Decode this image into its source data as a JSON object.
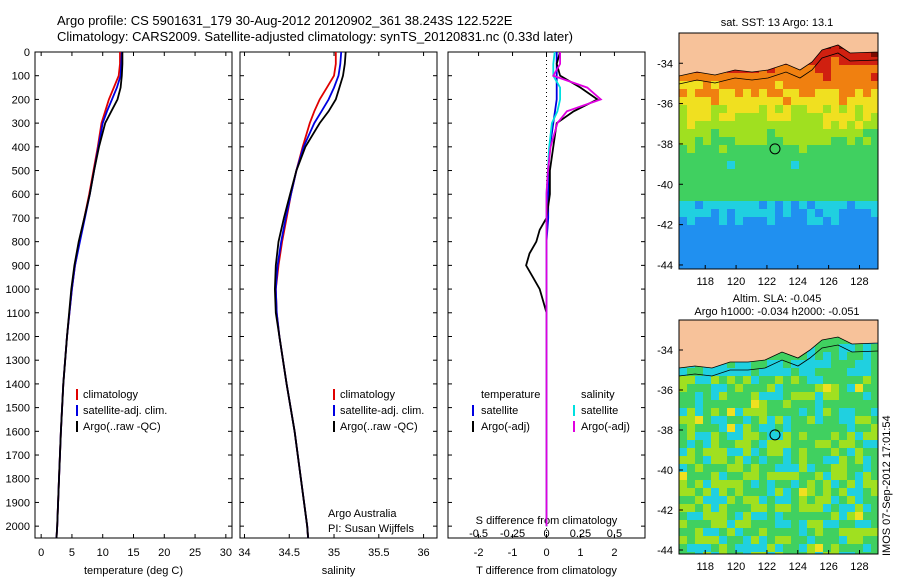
{
  "title_line1": "Argo profile: CS 5901631_179 30-Aug-2012 20120902_361 38.243S 122.522E",
  "title_line2": "Climatology: CARS2009. Satellite-adjusted climatology: synTS_20120831.nc (0.33d later)",
  "depth_ticks": [
    0,
    100,
    200,
    300,
    400,
    500,
    600,
    700,
    800,
    900,
    1000,
    1100,
    1200,
    1300,
    1400,
    1500,
    1600,
    1700,
    1800,
    1900,
    2000
  ],
  "colors": {
    "climatology": "#e00000",
    "satellite": "#0000e0",
    "argo": "#000000",
    "sal_sat": "#00e0e0",
    "sal_adj": "#e000e0",
    "land": "#f7c29a"
  },
  "footer": {
    "imos_stamp": "IMOS 07-Sep-2012 17:01:54",
    "argo_australia": "Argo Australia",
    "pi": "PI: Susan Wijffels"
  },
  "chart_data": [
    {
      "type": "line",
      "xlabel": "temperature (deg C)",
      "xticks": [
        0,
        5,
        10,
        15,
        20,
        25,
        30
      ],
      "xlim": [
        -1,
        31
      ],
      "ylim": [
        2050,
        0
      ],
      "legend": {
        "position": "lower-center",
        "labels": [
          "climatology",
          "satellite-adj. clim.",
          "Argo(..raw -QC)"
        ]
      },
      "series": [
        {
          "name": "climatology",
          "depth": [
            0,
            50,
            100,
            150,
            200,
            250,
            300,
            400,
            500,
            600,
            700,
            800,
            900,
            1000,
            1200,
            1400,
            1600,
            1800,
            2000,
            2050
          ],
          "values": [
            12.8,
            12.8,
            12.6,
            11.8,
            11.0,
            10.4,
            9.8,
            9.2,
            8.5,
            7.8,
            7.0,
            6.2,
            5.5,
            5.0,
            4.2,
            3.6,
            3.2,
            2.9,
            2.6,
            2.5
          ]
        },
        {
          "name": "satellite-adj. clim.",
          "depth": [
            0,
            50,
            100,
            150,
            200,
            250,
            300,
            400,
            500,
            600,
            700,
            800,
            900,
            1000,
            1200,
            1400,
            1600,
            1800,
            2000,
            2050
          ],
          "values": [
            13.1,
            13.0,
            12.9,
            12.3,
            11.5,
            10.7,
            10.0,
            9.3,
            8.6,
            7.9,
            7.1,
            6.3,
            5.5,
            5.0,
            4.2,
            3.6,
            3.2,
            2.9,
            2.6,
            2.5
          ]
        },
        {
          "name": "Argo(..raw -QC)",
          "depth": [
            0,
            50,
            100,
            150,
            200,
            250,
            300,
            400,
            500,
            600,
            700,
            800,
            900,
            1000,
            1200,
            1400,
            1600,
            1800,
            2000,
            2050
          ],
          "values": [
            13.2,
            13.2,
            13.1,
            12.9,
            12.4,
            11.4,
            10.4,
            9.4,
            8.6,
            7.9,
            7.0,
            6.1,
            5.4,
            4.9,
            4.2,
            3.6,
            3.2,
            2.9,
            2.6,
            2.5
          ]
        }
      ]
    },
    {
      "type": "line",
      "xlabel": "salinity",
      "xticks": [
        34,
        34.5,
        35,
        35.5,
        36
      ],
      "xlim": [
        33.95,
        36.15
      ],
      "ylim": [
        2050,
        0
      ],
      "legend": {
        "position": "lower-center",
        "labels": [
          "climatology",
          "satellite-adj. clim.",
          "Argo(..raw -QC)"
        ]
      },
      "series": [
        {
          "name": "climatology",
          "depth": [
            0,
            50,
            100,
            150,
            200,
            250,
            300,
            400,
            500,
            600,
            700,
            800,
            900,
            1000,
            1100,
            1200,
            1400,
            1600,
            1800,
            2000,
            2050
          ],
          "values": [
            35.02,
            35.02,
            35.0,
            34.92,
            34.84,
            34.78,
            34.73,
            34.65,
            34.58,
            34.52,
            34.47,
            34.42,
            34.38,
            34.35,
            34.36,
            34.39,
            34.47,
            34.56,
            34.63,
            34.7,
            34.71
          ]
        },
        {
          "name": "satellite-adj. clim.",
          "depth": [
            0,
            50,
            100,
            150,
            200,
            250,
            300,
            400,
            500,
            600,
            700,
            800,
            900,
            1000,
            1100,
            1200,
            1400,
            1600,
            1800,
            2000,
            2050
          ],
          "values": [
            35.08,
            35.07,
            35.05,
            35.0,
            34.94,
            34.86,
            34.78,
            34.66,
            34.58,
            34.52,
            34.46,
            34.41,
            34.37,
            34.35,
            34.36,
            34.39,
            34.47,
            34.56,
            34.63,
            34.7,
            34.71
          ]
        },
        {
          "name": "Argo(..raw -QC)",
          "depth": [
            0,
            50,
            100,
            150,
            200,
            250,
            300,
            400,
            500,
            600,
            700,
            800,
            900,
            1000,
            1100,
            1200,
            1400,
            1600,
            1800,
            2000,
            2050
          ],
          "values": [
            35.13,
            35.12,
            35.1,
            35.06,
            35.02,
            34.94,
            34.84,
            34.68,
            34.58,
            34.51,
            34.44,
            34.38,
            34.35,
            34.34,
            34.35,
            34.39,
            34.47,
            34.56,
            34.63,
            34.7,
            34.71
          ]
        }
      ]
    },
    {
      "type": "line",
      "xlabel": "T difference from climatology",
      "xlabel_top": "S difference from climatology",
      "xticks": [
        -2,
        -1,
        0,
        1,
        2
      ],
      "xticks_top": [
        -0.5,
        -0.25,
        0,
        0.25,
        0.5
      ],
      "xlim": [
        -2.9,
        2.9
      ],
      "ylim": [
        2050,
        0
      ],
      "legend": {
        "position": "lower-center",
        "col1_title": "temperature",
        "col2_title": "salinity",
        "labels": [
          "satellite",
          "Argo(-adj)"
        ]
      },
      "series": [
        {
          "name": "temperature satellite",
          "depth": [
            0,
            100,
            200,
            300,
            400,
            500,
            600,
            700,
            800,
            900,
            1000,
            1200,
            1400,
            1600,
            1800,
            2000
          ],
          "values": [
            0.3,
            0.3,
            0.3,
            0.2,
            0.1,
            0.05,
            0.05,
            0.05,
            0.0,
            0.0,
            0.0,
            0.0,
            0.0,
            0.0,
            0.0,
            0.0
          ]
        },
        {
          "name": "temperature Argo(-adj)",
          "depth": [
            0,
            50,
            100,
            150,
            200,
            250,
            300,
            400,
            500,
            600,
            700,
            750,
            800,
            850,
            900,
            950,
            1000,
            1050,
            1100,
            1200,
            1400,
            1600,
            1800,
            2000
          ],
          "values": [
            0.4,
            0.3,
            0.4,
            1.0,
            1.5,
            0.8,
            0.3,
            0.2,
            0.1,
            0.1,
            0.0,
            -0.2,
            -0.3,
            -0.5,
            -0.6,
            -0.4,
            -0.2,
            -0.1,
            0.0,
            0.0,
            0.0,
            0.0,
            0.0,
            0.0
          ]
        },
        {
          "name": "salinity satellite",
          "depth": [
            0,
            50,
            100,
            150,
            200,
            250,
            300,
            400,
            500,
            600,
            700,
            800,
            1000,
            1200,
            1400,
            1600,
            1800,
            2000
          ],
          "values": [
            0.06,
            0.05,
            0.05,
            0.1,
            0.1,
            0.08,
            0.04,
            0.02,
            0.01,
            0.0,
            0.0,
            0.0,
            0.0,
            0.0,
            0.0,
            0.0,
            0.0,
            0.0
          ]
        },
        {
          "name": "salinity Argo(-adj)",
          "depth": [
            0,
            50,
            100,
            150,
            200,
            250,
            300,
            400,
            500,
            600,
            700,
            800,
            1000,
            1200,
            1400,
            1600,
            1800,
            2000
          ],
          "values": [
            0.1,
            0.1,
            0.05,
            0.3,
            0.4,
            0.15,
            0.08,
            0.03,
            0.01,
            0.0,
            0.0,
            0.0,
            0.0,
            0.0,
            0.0,
            0.0,
            0.0,
            0.0
          ]
        }
      ]
    },
    {
      "type": "heatmap",
      "title": "sat. SST: 13 Argo: 13.1",
      "xticks": [
        118,
        120,
        122,
        124,
        126,
        128
      ],
      "yticks": [
        -34,
        -36,
        -38,
        -40,
        -42,
        -44
      ],
      "xlim": [
        116.3,
        129.2
      ],
      "ylim": [
        -44.2,
        -32.5
      ],
      "argo_position": {
        "lon": 122.522,
        "lat": -38.243
      }
    },
    {
      "type": "heatmap",
      "title": "Altim. SLA: -0.045",
      "subtitle": "Argo h1000: -0.034 h2000: -0.051",
      "xticks": [
        118,
        120,
        122,
        124,
        126,
        128
      ],
      "yticks": [
        -34,
        -36,
        -38,
        -40,
        -42,
        -44
      ],
      "xlim": [
        116.3,
        129.2
      ],
      "ylim": [
        -44.2,
        -32.5
      ],
      "argo_position": {
        "lon": 122.522,
        "lat": -38.243
      }
    }
  ]
}
